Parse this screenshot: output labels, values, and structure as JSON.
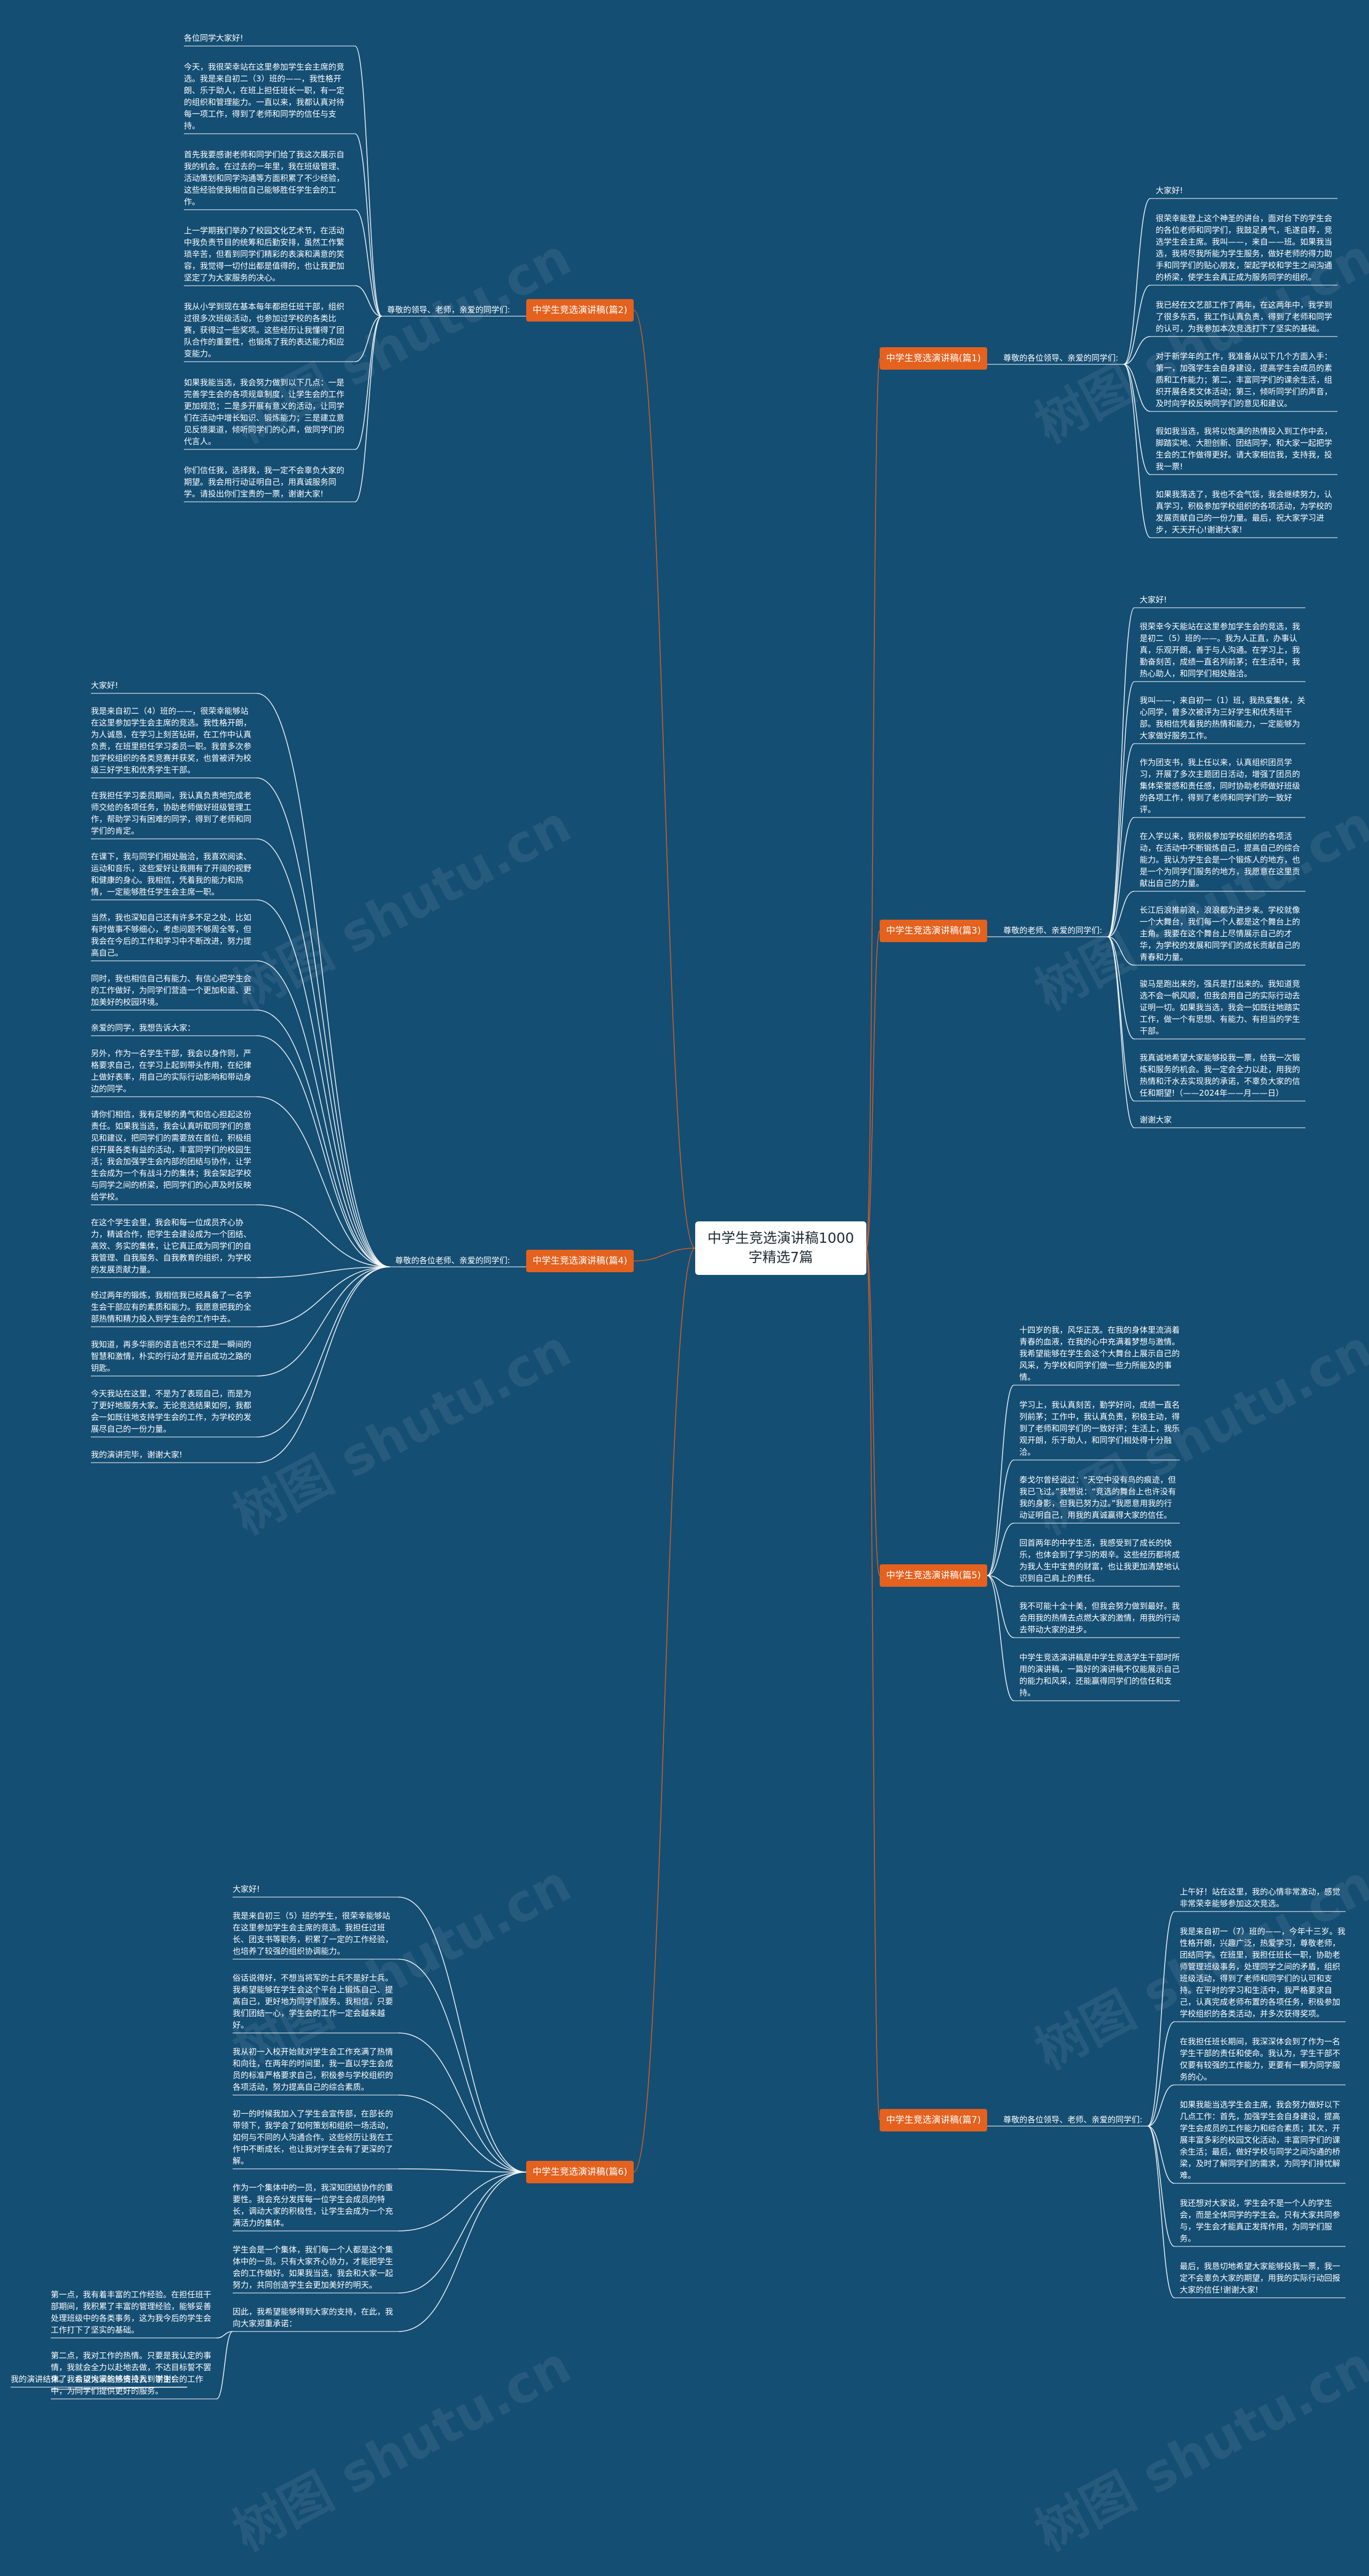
{
  "root": {
    "title": "中学生竞选演讲稿1000字精选7篇"
  },
  "watermark": "树图 shutu.cn",
  "branches": [
    {
      "id": "p1",
      "side": "right",
      "title": "中学生竞选演讲稿(篇1)",
      "greeting": "尊敬的各位领导、亲爱的同学们:",
      "leaves": [
        "大家好!",
        "很荣幸能登上这个神圣的讲台，面对台下的学生会的各位老师和同学们，我鼓足勇气，毛遂自荐，竞选学生会主席。我叫——，来自——班。如果我当选，我将尽我所能为学生服务，做好老师的得力助手和同学们的贴心朋友，架起学校和学生之间沟通的桥梁，使学生会真正成为服务同学的组织。",
        "我已经在文艺部工作了两年，在这两年中，我学到了很多东西，我工作认真负责，得到了老师和同学的认可，为我参加本次竞选打下了坚实的基础。",
        "对于新学年的工作，我准备从以下几个方面入手：第一，加强学生会自身建设，提高学生会成员的素质和工作能力；第二，丰富同学们的课余生活，组织开展各类文体活动；第三，倾听同学们的声音，及时向学校反映同学们的意见和建议。",
        "假如我当选，我将以饱满的热情投入到工作中去，脚踏实地、大胆创新、团结同学，和大家一起把学生会的工作做得更好。请大家相信我，支持我，投我一票!",
        "如果我落选了，我也不会气馁，我会继续努力，认真学习，积极参加学校组织的各项活动，为学校的发展贡献自己的一份力量。最后，祝大家学习进步，天天开心!谢谢大家!"
      ]
    },
    {
      "id": "p2",
      "side": "left",
      "title": "中学生竞选演讲稿(篇2)",
      "greeting": "尊敬的领导、老师，亲爱的同学们:",
      "leaves": [
        "各位同学大家好!",
        "今天，我很荣幸站在这里参加学生会主席的竞选。我是来自初二（3）班的——，我性格开朗、乐于助人，在班上担任班长一职，有一定的组织和管理能力。一直以来，我都认真对待每一项工作，得到了老师和同学的信任与支持。",
        "首先我要感谢老师和同学们给了我这次展示自我的机会。在过去的一年里，我在班级管理、活动策划和同学沟通等方面积累了不少经验，这些经验使我相信自己能够胜任学生会的工作。",
        "上一学期我们举办了校园文化艺术节，在活动中我负责节目的统筹和后勤安排，虽然工作繁琐辛苦，但看到同学们精彩的表演和满意的笑容，我觉得一切付出都是值得的，也让我更加坚定了为大家服务的决心。",
        "我从小学到现在基本每年都担任班干部，组织过很多次班级活动，也参加过学校的各类比赛，获得过一些奖项。这些经历让我懂得了团队合作的重要性，也锻炼了我的表达能力和应变能力。",
        "如果我能当选，我会努力做到以下几点：一是完善学生会的各项规章制度，让学生会的工作更加规范；二是多开展有意义的活动，让同学们在活动中增长知识、锻炼能力；三是建立意见反馈渠道，倾听同学们的心声，做同学们的代言人。",
        "你们信任我，选择我，我一定不会辜负大家的期望。我会用行动证明自己，用真诚服务同学。请投出你们宝贵的一票，谢谢大家!"
      ]
    },
    {
      "id": "p3",
      "side": "right",
      "title": "中学生竞选演讲稿(篇3)",
      "greeting": "尊敬的老师、亲爱的同学们:",
      "leaves": [
        "大家好!",
        "很荣幸今天能站在这里参加学生会的竞选，我是初二（5）班的——。我为人正直，办事认真，乐观开朗，善于与人沟通。在学习上，我勤奋刻苦，成绩一直名列前茅；在生活中，我热心助人，和同学们相处融洽。",
        "我叫——，来自初一（1）班，我热爱集体，关心同学，曾多次被评为三好学生和优秀班干部。我相信凭着我的热情和能力，一定能够为大家做好服务工作。",
        "作为团支书，我上任以来，认真组织团员学习，开展了多次主题团日活动，增强了团员的集体荣誉感和责任感，同时协助老师做好班级的各项工作，得到了老师和同学们的一致好评。",
        "在入学以来，我积极参加学校组织的各项活动，在活动中不断锻炼自己，提高自己的综合能力。我认为学生会是一个锻炼人的地方，也是一个为同学们服务的地方，我愿意在这里贡献出自己的力量。",
        "长江后浪推前浪，浪浪都为进步来。学校就像一个大舞台，我们每一个人都是这个舞台上的主角。我要在这个舞台上尽情展示自己的才华，为学校的发展和同学们的成长贡献自己的青春和力量。",
        "骏马是跑出来的，强兵是打出来的。我知道竞选不会一帆风顺，但我会用自己的实际行动去证明一切。如果我当选，我会一如既往地踏实工作，做一个有思想、有能力、有担当的学生干部。",
        "我真诚地希望大家能够投我一票，给我一次锻炼和服务的机会。我一定会全力以赴，用我的热情和汗水去实现我的承诺，不辜负大家的信任和期望!（——2024年——月——日）",
        "谢谢大家"
      ]
    },
    {
      "id": "p4",
      "side": "left",
      "title": "中学生竞选演讲稿(篇4)",
      "greeting": "尊敬的各位老师、亲爱的同学们:",
      "leaves": [
        "大家好!",
        "我是来自初二（4）班的——，很荣幸能够站在这里参加学生会主席的竞选。我性格开朗，为人诚恳，在学习上刻苦钻研，在工作中认真负责，在班里担任学习委员一职。我曾多次参加学校组织的各类竞赛并获奖，也曾被评为校级三好学生和优秀学生干部。",
        "在我担任学习委员期间，我认真负责地完成老师交给的各项任务，协助老师做好班级管理工作，帮助学习有困难的同学，得到了老师和同学们的肯定。",
        "在课下，我与同学们相处融洽，我喜欢阅读、运动和音乐，这些爱好让我拥有了开阔的视野和健康的身心。我相信，凭着我的能力和热情，一定能够胜任学生会主席一职。",
        "当然，我也深知自己还有许多不足之处，比如有时做事不够细心，考虑问题不够周全等，但我会在今后的工作和学习中不断改进，努力提高自己。",
        "同时，我也相信自己有能力、有信心把学生会的工作做好，为同学们营造一个更加和谐、更加美好的校园环境。",
        "亲爱的同学，我想告诉大家：",
        "另外，作为一名学生干部，我会以身作则，严格要求自己，在学习上起到带头作用，在纪律上做好表率，用自己的实际行动影响和带动身边的同学。",
        "请你们相信，我有足够的勇气和信心担起这份责任。如果我当选，我会认真听取同学们的意见和建议，把同学们的需要放在首位，积极组织开展各类有益的活动，丰富同学们的校园生活；我会加强学生会内部的团结与协作，让学生会成为一个有战斗力的集体；我会架起学校与同学之间的桥梁，把同学们的心声及时反映给学校。",
        "在这个学生会里，我会和每一位成员齐心协力，精诚合作，把学生会建设成为一个团结、高效、务实的集体，让它真正成为同学们的自我管理、自我服务、自我教育的组织，为学校的发展贡献力量。",
        "经过两年的锻炼，我相信我已经具备了一名学生会干部应有的素质和能力。我愿意把我的全部热情和精力投入到学生会的工作中去。",
        "我知道，再多华丽的语言也只不过是一瞬间的智慧和激情，朴实的行动才是开启成功之路的钥匙。",
        "今天我站在这里，不是为了表现自己，而是为了更好地服务大家。无论竞选结果如何，我都会一如既往地支持学生会的工作，为学校的发展尽自己的一份力量。",
        "我的演讲完毕，谢谢大家!"
      ]
    },
    {
      "id": "p5",
      "side": "right",
      "title": "中学生竞选演讲稿(篇5)",
      "greeting": "",
      "leaves": [
        "十四岁的我，风华正茂。在我的身体里流淌着青春的血液，在我的心中充满着梦想与激情。我希望能够在学生会这个大舞台上展示自己的风采，为学校和同学们做一些力所能及的事情。",
        "学习上，我认真刻苦，勤学好问，成绩一直名列前茅；工作中，我认真负责，积极主动，得到了老师和同学们的一致好评；生活上，我乐观开朗，乐于助人，和同学们相处得十分融洽。",
        "泰戈尔曾经说过：“天空中没有鸟的痕迹，但我已飞过。”我想说：“竞选的舞台上也许没有我的身影，但我已努力过。”我愿意用我的行动证明自己，用我的真诚赢得大家的信任。",
        "回首两年的中学生活，我感受到了成长的快乐，也体会到了学习的艰辛。这些经历都将成为我人生中宝贵的财富，也让我更加清楚地认识到自己肩上的责任。",
        "我不可能十全十美，但我会努力做到最好。我会用我的热情去点燃大家的激情，用我的行动去带动大家的进步。",
        "中学生竞选演讲稿是中学生竞选学生干部时所用的演讲稿，一篇好的演讲稿不仅能展示自己的能力和风采，还能赢得同学们的信任和支持。"
      ]
    },
    {
      "id": "p6",
      "side": "left",
      "title": "中学生竞选演讲稿(篇6)",
      "greeting": "",
      "leaves": [
        "大家好!",
        "我是来自初三（5）班的学生，很荣幸能够站在这里参加学生会主席的竞选。我担任过班长、团支书等职务，积累了一定的工作经验，也培养了较强的组织协调能力。",
        "俗话说得好，不想当将军的士兵不是好士兵。我希望能够在学生会这个平台上锻炼自己、提高自己，更好地为同学们服务。我相信，只要我们团结一心，学生会的工作一定会越来越好。",
        "我从初一入校开始就对学生会工作充满了热情和向往，在两年的时间里，我一直以学生会成员的标准严格要求自己，积极参与学校组织的各项活动，努力提高自己的综合素质。",
        "初一的时候我加入了学生会宣传部，在部长的带领下，我学会了如何策划和组织一场活动，如何与不同的人沟通合作。这些经历让我在工作中不断成长，也让我对学生会有了更深的了解。",
        "作为一个集体中的一员，我深知团结协作的重要性。我会充分发挥每一位学生会成员的特长，调动大家的积极性，让学生会成为一个充满活力的集体。",
        "学生会是一个集体，我们每一个人都是这个集体中的一员。只有大家齐心协力，才能把学生会的工作做好。如果我当选，我会和大家一起努力，共同创造学生会更加美好的明天。",
        "因此，我希望能够得到大家的支持，在此，我向大家郑重承诺："
      ],
      "sub_leaves": [
        "第一点，我有着丰富的工作经验。在担任班干部期间，我积累了丰富的管理经验，能够妥善处理班级中的各类事务，这为我今后的学生会工作打下了坚实的基础。",
        "第二点，我对工作的热情。只要是我认定的事情，我就会全力以赴地去做，不达目标誓不罢休。我会以饱满的热情投入到学生会的工作中，为同学们提供更好的服务。"
      ],
      "closing": "我的演讲结束了，希望大家能够支持我！谢谢!"
    },
    {
      "id": "p7",
      "side": "right",
      "title": "中学生竞选演讲稿(篇7)",
      "greeting": "尊敬的各位领导、老师、亲爱的同学们:",
      "leaves": [
        "上午好！站在这里，我的心情非常激动，感觉非常荣幸能够参加这次竞选。",
        "我是来自初一（7）班的——，今年十三岁。我性格开朗，兴趣广泛，热爱学习，尊敬老师，团结同学。在班里，我担任班长一职，协助老师管理班级事务，处理同学之间的矛盾，组织班级活动，得到了老师和同学们的认可和支持。在平时的学习和生活中，我严格要求自己，认真完成老师布置的各项任务，积极参加学校组织的各类活动，并多次获得奖项。",
        "在我担任班长期间，我深深体会到了作为一名学生干部的责任和使命。我认为，学生干部不仅要有较强的工作能力，更要有一颗为同学服务的心。",
        "如果我能当选学生会主席，我会努力做好以下几点工作：首先，加强学生会自身建设，提高学生会成员的工作能力和综合素质；其次，开展丰富多彩的校园文化活动，丰富同学们的课余生活；最后，做好学校与同学之间沟通的桥梁，及时了解同学们的需求，为同学们排忧解难。",
        "我还想对大家说，学生会不是一个人的学生会，而是全体同学的学生会。只有大家共同参与，学生会才能真正发挥作用，为同学们服务。",
        "最后，我恳切地希望大家能够投我一票，我一定不会辜负大家的期望，用我的实际行动回报大家的信任!谢谢大家!"
      ]
    }
  ]
}
